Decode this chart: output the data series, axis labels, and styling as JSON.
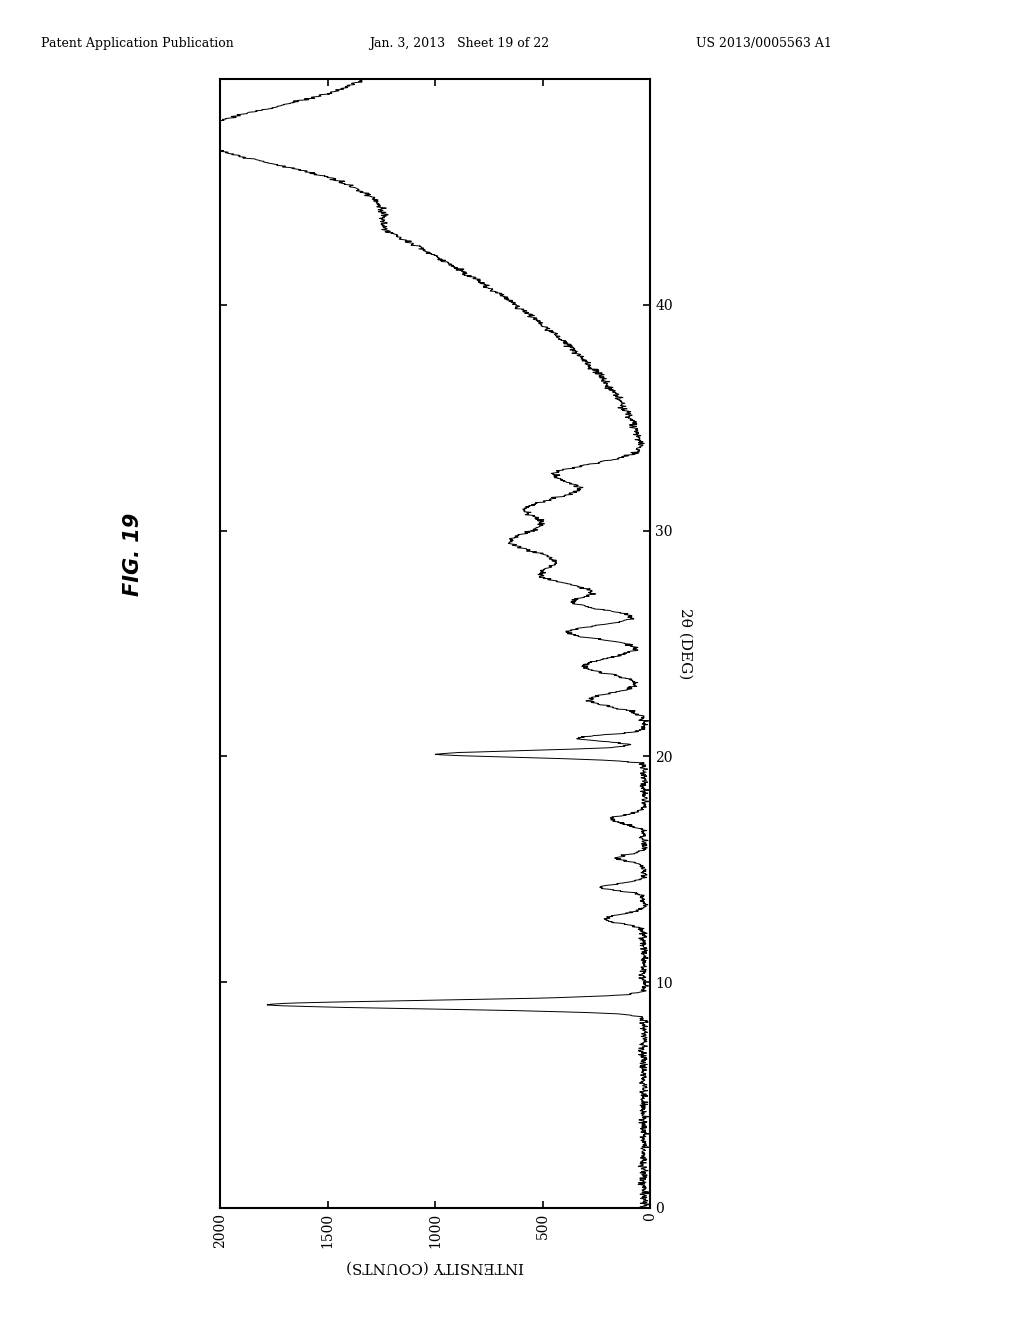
{
  "header_left": "Patent Application Publication",
  "header_center": "Jan. 3, 2013   Sheet 19 of 22",
  "header_right": "US 2013/0005563 A1",
  "xlabel": "INTENSITY (COUNTS)",
  "ylabel": "2θ (DEG)",
  "xlim_left": 2000,
  "xlim_right": 0,
  "ylim_bottom": 0,
  "ylim_top": 50,
  "yticks": [
    0,
    10,
    20,
    30,
    40
  ],
  "xticks": [
    2000,
    1500,
    1000,
    500,
    0
  ],
  "xtick_labels": [
    "2000",
    "1500",
    "1000",
    "500",
    "0"
  ],
  "background_color": "#ffffff",
  "line_color": "#000000",
  "fig_label": "FIG. 19"
}
